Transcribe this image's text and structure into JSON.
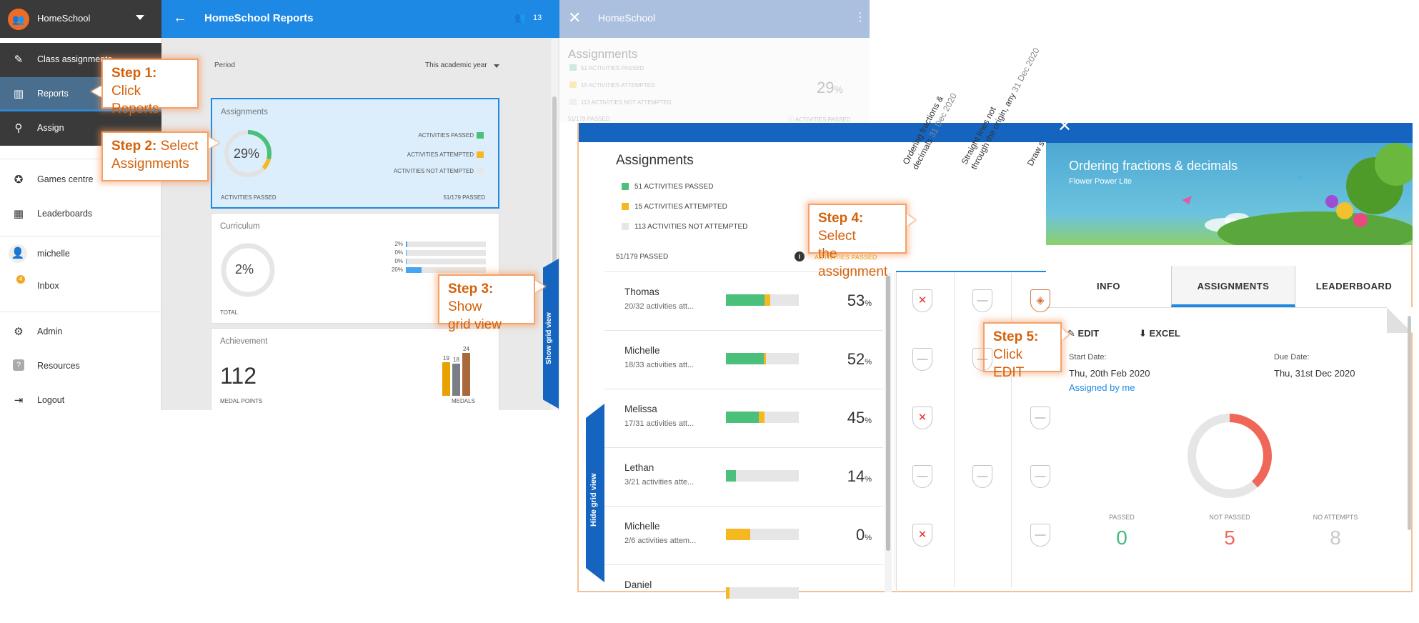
{
  "sidebar": {
    "school": "HomeSchool",
    "items": [
      {
        "label": "Class assignments",
        "icon": "✎"
      },
      {
        "label": "Reports",
        "icon": "📊"
      },
      {
        "label": "Assign",
        "icon": "🔍"
      },
      {
        "label": "Games centre",
        "icon": "🎮"
      },
      {
        "label": "Leaderboards",
        "icon": "▦"
      },
      {
        "label": "michelle",
        "icon": "👤"
      },
      {
        "label": "Inbox",
        "icon": ""
      },
      {
        "label": "Admin",
        "icon": "⚙"
      },
      {
        "label": "Resources",
        "icon": "?"
      },
      {
        "label": "Logout",
        "icon": "⇥"
      }
    ],
    "inbox_count": "4"
  },
  "reports": {
    "title": "HomeSchool Reports",
    "member_count": "13",
    "period_label": "Period",
    "period_value": "This academic year",
    "assignments": {
      "title": "Assignments",
      "percent": "29%",
      "legend": [
        "ACTIVITIES PASSED",
        "ACTIVITIES ATTEMPTED",
        "ACTIVITIES NOT ATTEMPTED"
      ],
      "footer_left": "ACTIVITIES PASSED",
      "footer_right": "51/179 PASSED",
      "passed_fraction": 0.29,
      "attempted_fraction": 0.08
    },
    "curriculum": {
      "title": "Curriculum",
      "percent": "2%",
      "footer": "TOTAL",
      "bars": [
        {
          "label": "2%",
          "value": 2
        },
        {
          "label": "0%",
          "value": 0
        },
        {
          "label": "0%",
          "value": 0
        },
        {
          "label": "20%",
          "value": 20
        }
      ]
    },
    "achievement": {
      "title": "Achievement",
      "points": "112",
      "points_label": "MEDAL POINTS",
      "medals_label": "MEDALS",
      "medals": [
        {
          "count": "19",
          "value": 19,
          "color": "#e8a200"
        },
        {
          "count": "18",
          "value": 18,
          "color": "#7a7f86"
        },
        {
          "count": "24",
          "value": 24,
          "color": "#a86a3a"
        }
      ]
    },
    "show_grid": "Show grid view"
  },
  "faded": {
    "title": "HomeSchool",
    "heading": "Assignments",
    "legend": [
      "51 ACTIVITIES PASSED",
      "15 ACTIVITIES ATTEMPTED",
      "113 ACTIVITIES NOT ATTEMPTED"
    ],
    "percent": "29",
    "percent_sign": "%",
    "footer_left": "51/179 PASSED",
    "footer_right": "ACTIVITIES PASSED"
  },
  "grid": {
    "title": "Assignments",
    "legend": [
      "51 ACTIVITIES PASSED",
      "15 ACTIVITIES ATTEMPTED",
      "113 ACTIVITIES NOT ATTEMPTED"
    ],
    "passed": "51/179 PASSED",
    "info_label": "ACTIVITIES PASSED",
    "hide_grid": "Hide grid view",
    "columns": [
      {
        "name": "Ordering fractions &",
        "name2": "decimals",
        "date": "31 Dec 2020"
      },
      {
        "name": "Straight lines not",
        "name2": "through the origin, any",
        "date": "31 Dec 2020"
      },
      {
        "name": "Draw s",
        "name2": "",
        "date": ""
      }
    ],
    "students": [
      {
        "name": "Thomas",
        "sub": "20/32 activities att...",
        "pct": "53",
        "passed": 0.53,
        "attempted": 0.08,
        "cells": [
          "fail",
          "dash",
          "gold"
        ]
      },
      {
        "name": "Michelle",
        "sub": "18/33 activities att...",
        "pct": "52",
        "passed": 0.52,
        "attempted": 0.03,
        "cells": [
          "dash",
          "dash",
          ""
        ]
      },
      {
        "name": "Melissa",
        "sub": "17/31 activities att...",
        "pct": "45",
        "passed": 0.45,
        "attempted": 0.08,
        "cells": [
          "fail",
          "",
          "dash"
        ]
      },
      {
        "name": "Lethan",
        "sub": "3/21 activities atte...",
        "pct": "14",
        "passed": 0.14,
        "attempted": 0,
        "cells": [
          "dash",
          "dash",
          "dash"
        ]
      },
      {
        "name": "Michelle",
        "sub": "2/6 activities attem...",
        "pct": "0",
        "passed": 0,
        "attempted": 0.33,
        "cells": [
          "fail",
          "",
          "dash"
        ]
      },
      {
        "name": "Daniel",
        "sub": "",
        "pct": "",
        "passed": 0,
        "attempted": 0.05,
        "cells": [
          "",
          "",
          ""
        ]
      }
    ]
  },
  "detail": {
    "title": "Ordering fractions & decimals",
    "subtitle": "Flower Power Lite",
    "tabs": [
      "INFO",
      "ASSIGNMENTS",
      "LEADERBOARD"
    ],
    "edit": "EDIT",
    "excel": "EXCEL",
    "start_label": "Start Date:",
    "start_value": "Thu, 20th Feb 2020",
    "due_label": "Due Date:",
    "due_value": "Thu, 31st Dec 2020",
    "assigned_by": "Assigned by me",
    "stats": [
      {
        "label": "PASSED",
        "value": "0",
        "color": "#43b97f"
      },
      {
        "label": "NOT PASSED",
        "value": "5",
        "color": "#f0675a"
      },
      {
        "label": "NO ATTEMPTS",
        "value": "8",
        "color": "#c9c9c9"
      }
    ],
    "not_passed_fraction": 0.3846
  },
  "callouts": [
    {
      "step": "Step 1:",
      "text": "Click",
      "text2": "Reports"
    },
    {
      "step": "Step 2:",
      "text": "Select",
      "text2": "Assignments"
    },
    {
      "step": "Step 3:",
      "text": "Show",
      "text2": "grid view"
    },
    {
      "step": "Step 4:",
      "text": "Select",
      "text2": "the assignment"
    },
    {
      "step": "Step 5:",
      "text": "",
      "text2": "Click EDIT"
    }
  ],
  "colors": {
    "passed": "#4ac07a",
    "attempted": "#f5b820",
    "not_attempted": "#e6e6e6",
    "primary": "#1e88e5",
    "callout": "#d4610a"
  }
}
